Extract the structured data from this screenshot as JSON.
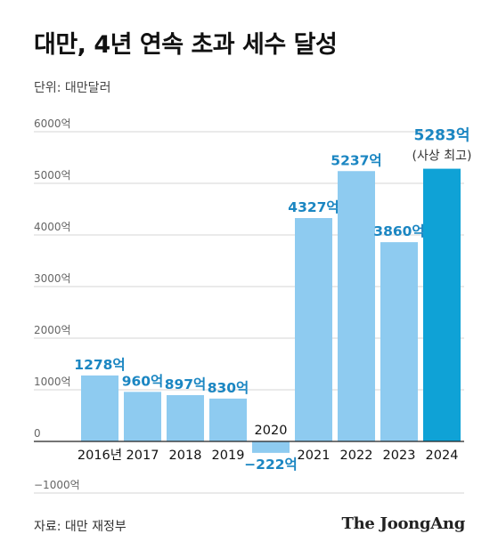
{
  "header": {
    "title": "대만, 4년 연속 초과 세수 달성",
    "unit": "단위: 대만달러"
  },
  "footer": {
    "source": "자료: 대만 재정부",
    "brand": "The JoongAng"
  },
  "colors": {
    "bar": "#8ecbf0",
    "highlight_bar": "#0fa2d6",
    "value_label": "#1b86c2",
    "grid": "#d4d4d4",
    "axis_text": "#666666"
  },
  "chart_data": {
    "type": "bar",
    "title": "대만, 4년 연속 초과 세수 달성",
    "xlabel": "",
    "ylabel": "",
    "unit": "대만달러",
    "ylim": [
      -1000,
      6000
    ],
    "yticks": [
      -1000,
      0,
      1000,
      2000,
      3000,
      4000,
      5000,
      6000
    ],
    "ytick_labels": [
      "−1000억",
      "0",
      "1000억",
      "2000억",
      "3000억",
      "4000억",
      "5000억",
      "6000억"
    ],
    "grid": true,
    "categories": [
      "2016년",
      "2017",
      "2018",
      "2019",
      "2020",
      "2021",
      "2022",
      "2023",
      "2024"
    ],
    "values": [
      1278,
      960,
      897,
      830,
      -222,
      4327,
      5237,
      3860,
      5283
    ],
    "value_labels": [
      "1278억",
      "960억",
      "897억",
      "830억",
      "−222억",
      "4327억",
      "5237억",
      "3860억",
      "5283억"
    ],
    "highlight_index": 8,
    "annotation": "(사상 최고)"
  }
}
